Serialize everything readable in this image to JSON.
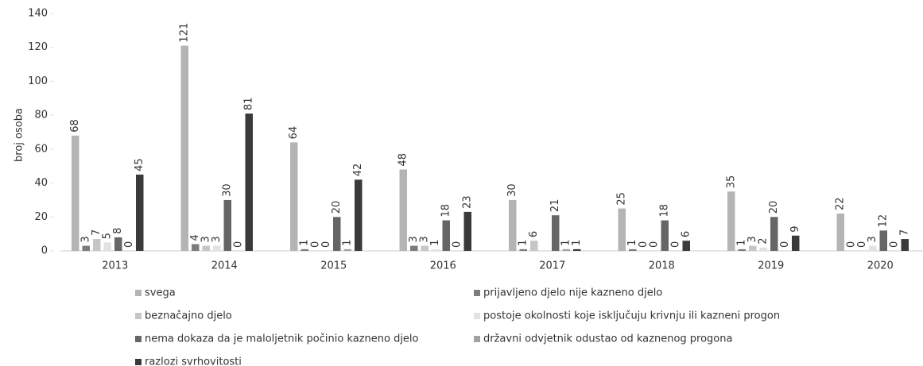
{
  "chart_data": {
    "type": "bar",
    "y_label": "broj osoba",
    "categories": [
      "2013",
      "2014",
      "2015",
      "2016",
      "2017",
      "2018",
      "2019",
      "2020"
    ],
    "series": [
      {
        "name": "svega",
        "color": "#b4b4b4",
        "values": [
          68,
          121,
          64,
          48,
          30,
          25,
          35,
          22
        ]
      },
      {
        "name": "prijavljeno djelo nije kazneno djelo",
        "color": "#7c7c7c",
        "values": [
          3,
          4,
          1,
          3,
          1,
          1,
          1,
          0
        ]
      },
      {
        "name": "beznačajno djelo",
        "color": "#c6c6c6",
        "values": [
          7,
          3,
          0,
          3,
          6,
          0,
          3,
          0
        ]
      },
      {
        "name": "postoje okolnosti koje isključuju krivnju ili kazneni progon",
        "color": "#e2e2e2",
        "values": [
          5,
          3,
          0,
          1,
          null,
          0,
          2,
          3
        ]
      },
      {
        "name": "nema dokaza da je maloljetnik počinio kazneno djelo",
        "color": "#666666",
        "values": [
          8,
          30,
          20,
          18,
          21,
          18,
          20,
          12
        ]
      },
      {
        "name": "državni odvjetnik odustao od kaznenog progona",
        "color": "#a2a2a2",
        "values": [
          0,
          0,
          1,
          0,
          1,
          0,
          0,
          0
        ]
      },
      {
        "name": "razlozi svrhovitosti",
        "color": "#3a3a3a",
        "values": [
          45,
          81,
          42,
          23,
          1,
          6,
          9,
          7
        ]
      }
    ],
    "ylim": [
      0,
      140
    ],
    "yticks": [
      0,
      20,
      40,
      60,
      80,
      100,
      120,
      140
    ]
  }
}
